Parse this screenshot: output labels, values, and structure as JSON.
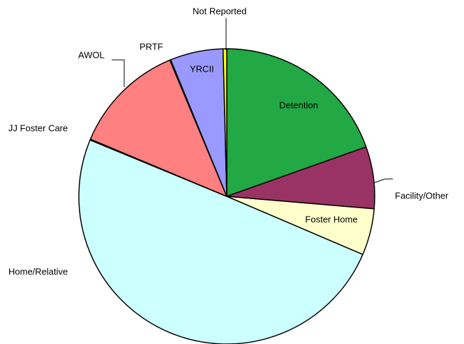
{
  "chart_data": {
    "type": "pie",
    "categories": [
      "Detention",
      "Facility/Other",
      "Foster Home",
      "Home/Relative",
      "JJ Foster Care",
      "AWOL",
      "PRTF",
      "YRCII",
      "Not Reported"
    ],
    "values": [
      19.6,
      6.8,
      5.1,
      49.9,
      0.1,
      12.4,
      0.1,
      5.8,
      0.4
    ],
    "colors": [
      "#22a844",
      "#993366",
      "#ffffcc",
      "#ccffff",
      "#0066cc",
      "#ff8080",
      "#ccccff",
      "#9999ff",
      "#ffff00"
    ]
  }
}
